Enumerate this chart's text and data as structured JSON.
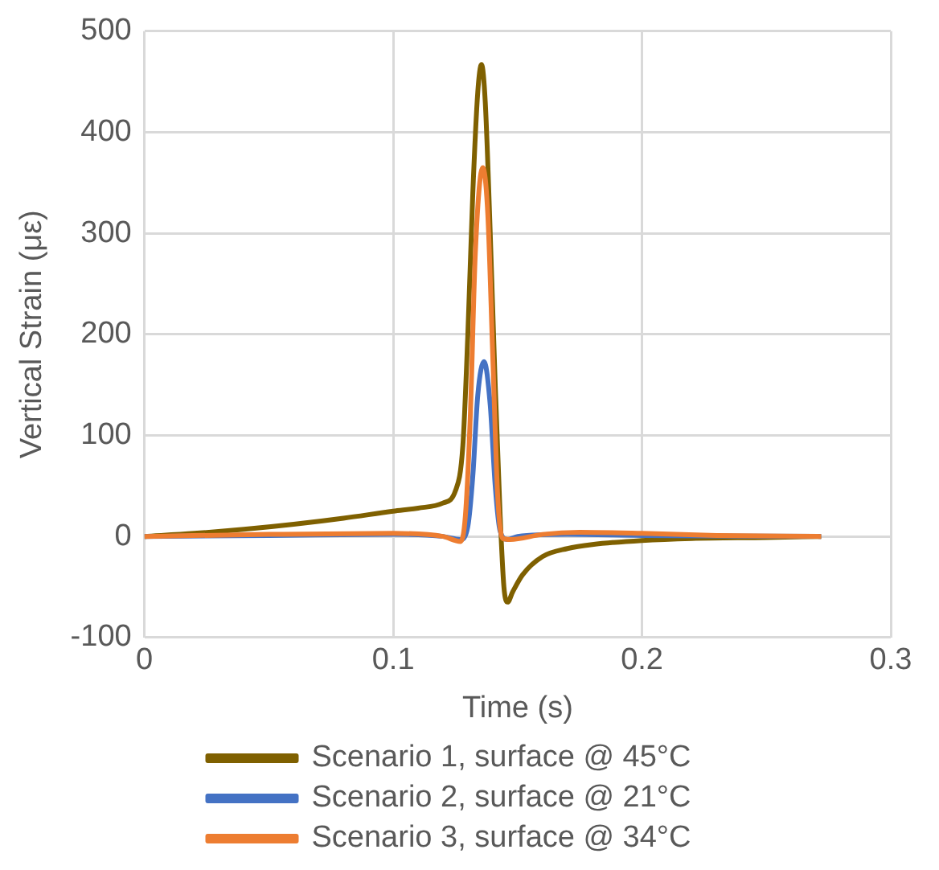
{
  "chart_data": {
    "type": "line",
    "xlabel": "Time (s)",
    "ylabel": "Vertical Strain (με)",
    "xlim": [
      0,
      0.3
    ],
    "xticks": [
      0,
      0.1,
      0.2,
      0.3
    ],
    "ylim": [
      -100,
      500
    ],
    "yticks": [
      -100,
      0,
      100,
      200,
      300,
      400,
      500
    ],
    "grid": true,
    "legend": "bottom",
    "marker": "none",
    "line_style": "solid",
    "series": [
      {
        "name": "Scenario 1, surface @ 45°C",
        "color": "#7f6000",
        "x": [
          0,
          0.02,
          0.04,
          0.06,
          0.08,
          0.1,
          0.11,
          0.12,
          0.125,
          0.128,
          0.13,
          0.132,
          0.134,
          0.1355,
          0.137,
          0.139,
          0.141,
          0.143,
          0.1445,
          0.146,
          0.148,
          0.152,
          0.16,
          0.17,
          0.18,
          0.2,
          0.22,
          0.25,
          0.272
        ],
        "values": [
          0,
          3,
          7,
          12,
          18,
          25,
          28,
          33,
          45,
          90,
          200,
          340,
          440,
          467,
          430,
          300,
          150,
          20,
          -50,
          -65,
          -55,
          -38,
          -20,
          -12,
          -8,
          -4,
          -2,
          -1,
          0
        ]
      },
      {
        "name": "Scenario 2, surface @ 21°C",
        "color": "#4472c4",
        "x": [
          0,
          0.05,
          0.1,
          0.12,
          0.127,
          0.13,
          0.132,
          0.134,
          0.1365,
          0.139,
          0.141,
          0.143,
          0.146,
          0.15,
          0.17,
          0.2,
          0.272
        ],
        "values": [
          0,
          1,
          2,
          0,
          -3,
          10,
          60,
          140,
          173,
          130,
          50,
          5,
          -3,
          0,
          2,
          1,
          0
        ]
      },
      {
        "name": "Scenario 3, surface @ 34°C",
        "color": "#ed7d31",
        "x": [
          0,
          0.05,
          0.1,
          0.12,
          0.127,
          0.129,
          0.131,
          0.133,
          0.136,
          0.138,
          0.14,
          0.142,
          0.144,
          0.147,
          0.16,
          0.175,
          0.2,
          0.23,
          0.272
        ],
        "values": [
          0,
          2,
          3,
          0,
          -5,
          20,
          120,
          280,
          365,
          320,
          180,
          40,
          -2,
          -3,
          2,
          4,
          3,
          1,
          0
        ]
      }
    ]
  }
}
